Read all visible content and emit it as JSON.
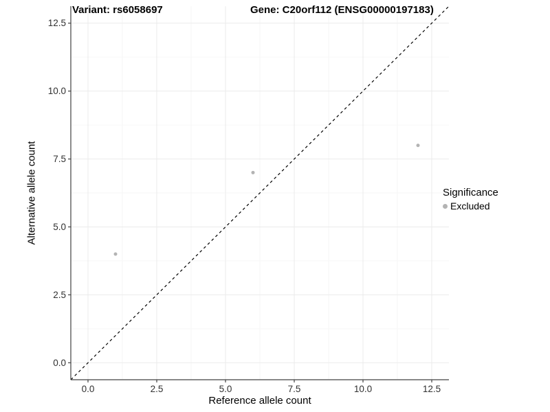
{
  "chart_data": {
    "type": "scatter",
    "title_parts": [
      "Variant: rs6058697",
      "Gene: C20orf112 (ENSG00000197183)"
    ],
    "xlabel": "Reference allele count",
    "ylabel": "Alternative allele count",
    "xlim": [
      -0.625,
      13.125
    ],
    "ylim": [
      -0.625,
      13.125
    ],
    "x_ticks": [
      0.0,
      2.5,
      5.0,
      7.5,
      10.0,
      12.5
    ],
    "y_ticks": [
      0.0,
      2.5,
      5.0,
      7.5,
      10.0,
      12.5
    ],
    "x_tick_labels": [
      "0.0",
      "2.5",
      "5.0",
      "7.5",
      "10.0",
      "12.5"
    ],
    "y_tick_labels": [
      "0.0",
      "2.5",
      "5.0",
      "7.5",
      "10.0",
      "12.5"
    ],
    "grid": true,
    "identity_line": {
      "style": "dashed",
      "color": "#000000"
    },
    "series": [
      {
        "name": "Excluded",
        "color": "#b3b3b3",
        "points": [
          {
            "x": 1,
            "y": 4
          },
          {
            "x": 6,
            "y": 7
          },
          {
            "x": 12,
            "y": 8
          }
        ]
      }
    ],
    "legend": {
      "title": "Significance",
      "position": "right",
      "items": [
        {
          "label": "Excluded",
          "color": "#b3b3b3"
        }
      ]
    },
    "colors": {
      "panel_background": "#ffffff",
      "grid_major": "#ebebeb",
      "grid_minor": "#f6f6f6",
      "axis_line": "#404040",
      "tick_text": "#303030"
    }
  }
}
